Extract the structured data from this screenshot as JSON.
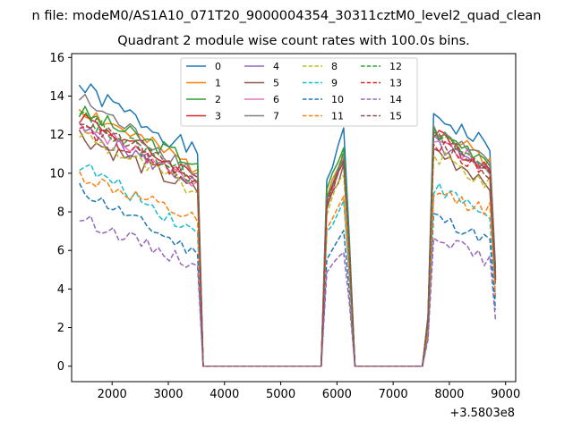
{
  "figure": {
    "suptitle": "n file: modeM0/AS1A10_071T20_9000004354_30311cztM0_level2_quad_clean",
    "offset_label": "+3.5803e8"
  },
  "chart_data": {
    "type": "line",
    "title": "Quadrant 2 module wise count rates with 100.0s bins.",
    "xlabel": "",
    "ylabel": "",
    "x_offset": 358030000,
    "xlim": [
      1280,
      9180
    ],
    "ylim": [
      -0.8,
      16.2
    ],
    "xticks": [
      2000,
      3000,
      4000,
      5000,
      6000,
      7000,
      8000,
      9000
    ],
    "xtick_labels": [
      "2000",
      "3000",
      "4000",
      "5000",
      "6000",
      "7000",
      "8000",
      "9000"
    ],
    "yticks": [
      0,
      2,
      4,
      6,
      8,
      10,
      12,
      14,
      16
    ],
    "ytick_labels": [
      "0",
      "2",
      "4",
      "6",
      "8",
      "10",
      "12",
      "14",
      "16"
    ],
    "grid": false,
    "legend_placement": "top-center",
    "legend_columns": 4,
    "segments": [
      {
        "start": 1420,
        "step": 100,
        "count": 22
      },
      {
        "start": 3620,
        "step": 100,
        "count": 22
      },
      {
        "start": 5720,
        "step": 100,
        "count": 6
      },
      {
        "start": 6320,
        "step": 100,
        "count": 12
      },
      {
        "start": 7520,
        "step": 100,
        "count": 1
      },
      {
        "start": 7620,
        "step": 100,
        "count": 13
      }
    ],
    "series": [
      {
        "name": "0",
        "color": "#1f77b4",
        "dashed": false,
        "p1_start": 14.5,
        "p1_end": 11.0,
        "b_max": 12.1,
        "p3_start": 13.1,
        "p3_end": 11.3,
        "jitter": 0.5,
        "seed": 1
      },
      {
        "name": "1",
        "color": "#ff7f0e",
        "dashed": false,
        "p1_start": 13.4,
        "p1_end": 10.2,
        "b_max": 11.2,
        "p3_start": 12.3,
        "p3_end": 10.6,
        "jitter": 0.45,
        "seed": 2
      },
      {
        "name": "2",
        "color": "#2ca02c",
        "dashed": false,
        "p1_start": 13.2,
        "p1_end": 10.5,
        "b_max": 11.4,
        "p3_start": 12.2,
        "p3_end": 10.8,
        "jitter": 0.45,
        "seed": 3
      },
      {
        "name": "3",
        "color": "#d62728",
        "dashed": false,
        "p1_start": 13.0,
        "p1_end": 9.8,
        "b_max": 10.9,
        "p3_start": 12.0,
        "p3_end": 10.3,
        "jitter": 0.45,
        "seed": 4
      },
      {
        "name": "4",
        "color": "#9467bd",
        "dashed": false,
        "p1_start": 12.3,
        "p1_end": 9.5,
        "b_max": 10.6,
        "p3_start": 11.6,
        "p3_end": 9.9,
        "jitter": 0.45,
        "seed": 5
      },
      {
        "name": "5",
        "color": "#8c564b",
        "dashed": false,
        "p1_start": 12.0,
        "p1_end": 9.0,
        "b_max": 10.3,
        "p3_start": 11.2,
        "p3_end": 9.6,
        "jitter": 0.5,
        "seed": 6
      },
      {
        "name": "6",
        "color": "#e377c2",
        "dashed": false,
        "p1_start": 12.6,
        "p1_end": 9.6,
        "b_max": 10.7,
        "p3_start": 11.9,
        "p3_end": 10.1,
        "jitter": 0.45,
        "seed": 7
      },
      {
        "name": "7",
        "color": "#7f7f7f",
        "dashed": false,
        "p1_start": 13.9,
        "p1_end": 10.0,
        "b_max": 10.9,
        "p3_start": 12.2,
        "p3_end": 10.4,
        "jitter": 0.45,
        "seed": 8
      },
      {
        "name": "8",
        "color": "#bcbd22",
        "dashed": true,
        "p1_start": 12.1,
        "p1_end": 9.0,
        "b_max": 10.0,
        "p3_start": 11.0,
        "p3_end": 9.4,
        "jitter": 0.45,
        "seed": 9
      },
      {
        "name": "9",
        "color": "#17becf",
        "dashed": true,
        "p1_start": 10.5,
        "p1_end": 6.9,
        "b_max": 8.6,
        "p3_start": 9.3,
        "p3_end": 7.8,
        "jitter": 0.4,
        "seed": 10
      },
      {
        "name": "10",
        "color": "#1f77b4",
        "dashed": true,
        "p1_start": 9.2,
        "p1_end": 5.8,
        "b_max": 7.0,
        "p3_start": 7.8,
        "p3_end": 6.5,
        "jitter": 0.35,
        "seed": 11
      },
      {
        "name": "11",
        "color": "#ff7f0e",
        "dashed": true,
        "p1_start": 9.9,
        "p1_end": 7.5,
        "b_max": 8.7,
        "p3_start": 9.0,
        "p3_end": 8.1,
        "jitter": 0.4,
        "seed": 12
      },
      {
        "name": "12",
        "color": "#2ca02c",
        "dashed": true,
        "p1_start": 13.0,
        "p1_end": 9.7,
        "b_max": 11.0,
        "p3_start": 12.0,
        "p3_end": 10.2,
        "jitter": 0.45,
        "seed": 13
      },
      {
        "name": "13",
        "color": "#d62728",
        "dashed": true,
        "p1_start": 12.4,
        "p1_end": 9.6,
        "b_max": 10.8,
        "p3_start": 11.5,
        "p3_end": 10.0,
        "jitter": 0.45,
        "seed": 14
      },
      {
        "name": "14",
        "color": "#9467bd",
        "dashed": true,
        "p1_start": 7.7,
        "p1_end": 5.2,
        "b_max": 6.0,
        "p3_start": 6.9,
        "p3_end": 5.4,
        "jitter": 0.35,
        "seed": 15
      },
      {
        "name": "15",
        "color": "#8c564b",
        "dashed": true,
        "p1_start": 12.9,
        "p1_end": 9.5,
        "b_max": 10.6,
        "p3_start": 11.9,
        "p3_end": 9.9,
        "jitter": 0.45,
        "seed": 16
      }
    ]
  }
}
